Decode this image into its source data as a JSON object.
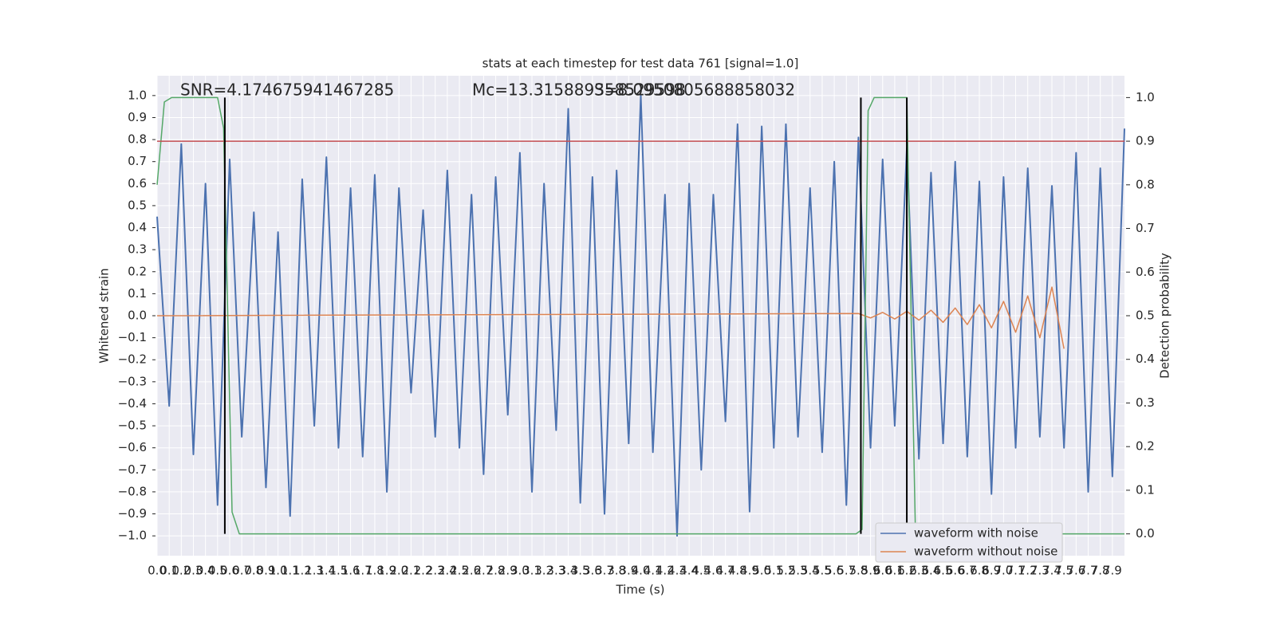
{
  "chart_data": {
    "type": "line",
    "title": "stats at each timestep for test data 761 [signal=1.0]",
    "xlabel": "Time (s)",
    "ylabel": "Whitened strain",
    "y2label": "Detection probability",
    "annotations": [
      "SNR=4.174675941467285",
      "Mc=13.315889358529598",
      "S=8.0950805688858032"
    ],
    "xlim": [
      0,
      8.0
    ],
    "ylim": [
      -1.09,
      1.09
    ],
    "y2lim": [
      -0.05,
      1.05
    ],
    "xticks": [
      {
        "value": 0,
        "label": "0.0"
      },
      0.1,
      0.2,
      0.3,
      0.4,
      0.5,
      0.6,
      0.7,
      0.8,
      0.9,
      {
        "value": 1,
        "label": "1.0"
      },
      1.1,
      1.2,
      1.3,
      1.4,
      1.5,
      1.6,
      1.7,
      1.8,
      1.9,
      {
        "value": 2,
        "label": "2.0"
      },
      2.1,
      2.2,
      2.3,
      2.4,
      2.5,
      2.6,
      2.7,
      2.8,
      2.9,
      {
        "value": 3,
        "label": "3.0"
      },
      3.1,
      3.2,
      3.3,
      3.4,
      3.5,
      3.6,
      3.7,
      3.8,
      3.9,
      {
        "value": 4,
        "label": "4.0"
      },
      4.1,
      4.2,
      4.3,
      4.4,
      4.5,
      4.6,
      4.7,
      4.8,
      4.9,
      {
        "value": 5,
        "label": "5.0"
      },
      5.1,
      5.2,
      5.3,
      5.4,
      5.5,
      5.6,
      5.7,
      5.8,
      5.9,
      {
        "value": 6,
        "label": "6.0"
      },
      6.1,
      6.2,
      6.3,
      6.4,
      6.5,
      6.6,
      6.7,
      6.8,
      6.9,
      {
        "value": 7,
        "label": "7.0"
      },
      7.1,
      7.2,
      7.3,
      7.4,
      7.5,
      7.6,
      7.7,
      7.8,
      7.9
    ],
    "yticks": [
      {
        "value": -1,
        "label": "−1.0"
      },
      {
        "value": -0.9,
        "label": "−0.9"
      },
      {
        "value": -0.8,
        "label": "−0.8"
      },
      {
        "value": -0.7,
        "label": "−0.7"
      },
      {
        "value": -0.6,
        "label": "−0.6"
      },
      {
        "value": -0.5,
        "label": "−0.5"
      },
      {
        "value": -0.4,
        "label": "−0.4"
      },
      {
        "value": -0.3,
        "label": "−0.3"
      },
      {
        "value": -0.2,
        "label": "−0.2"
      },
      {
        "value": -0.1,
        "label": "−0.1"
      },
      {
        "value": 0,
        "label": "0.0"
      },
      0.1,
      0.2,
      0.3,
      0.4,
      0.5,
      0.6,
      0.7,
      0.8,
      0.9,
      {
        "value": 1,
        "label": "1.0"
      }
    ],
    "y2ticks": [
      {
        "value": 0,
        "label": "0.0"
      },
      0.1,
      0.2,
      0.3,
      0.4,
      0.5,
      0.6,
      0.7,
      0.8,
      0.9,
      {
        "value": 1,
        "label": "1.0"
      }
    ],
    "grid": true,
    "legend": "lower right",
    "series": [
      {
        "name": "waveform with noise",
        "color": "#4c72b0",
        "x": [
          0.0,
          0.1,
          0.2,
          0.3,
          0.4,
          0.5,
          0.6,
          0.7,
          0.8,
          0.9,
          1.0,
          1.1,
          1.2,
          1.3,
          1.4,
          1.5,
          1.6,
          1.7,
          1.8,
          1.9,
          2.0,
          2.1,
          2.2,
          2.3,
          2.4,
          2.5,
          2.6,
          2.7,
          2.8,
          2.9,
          3.0,
          3.1,
          3.2,
          3.3,
          3.4,
          3.5,
          3.6,
          3.7,
          3.8,
          3.9,
          4.0,
          4.1,
          4.2,
          4.3,
          4.4,
          4.5,
          4.6,
          4.7,
          4.8,
          4.9,
          5.0,
          5.1,
          5.2,
          5.3,
          5.4,
          5.5,
          5.6,
          5.7,
          5.8,
          5.9,
          6.0,
          6.1,
          6.2,
          6.3,
          6.4,
          6.5,
          6.6,
          6.7,
          6.8,
          6.9,
          7.0,
          7.1,
          7.2,
          7.3,
          7.4,
          7.5,
          7.6,
          7.7,
          7.8,
          7.9,
          8.0
        ],
        "values": [
          0.45,
          -0.41,
          0.78,
          -0.63,
          0.6,
          -0.86,
          0.71,
          -0.55,
          0.47,
          -0.78,
          0.38,
          -0.91,
          0.62,
          -0.5,
          0.72,
          -0.6,
          0.58,
          -0.64,
          0.64,
          -0.8,
          0.58,
          -0.35,
          0.48,
          -0.55,
          0.66,
          -0.6,
          0.55,
          -0.72,
          0.63,
          -0.45,
          0.74,
          -0.8,
          0.6,
          -0.52,
          0.94,
          -0.85,
          0.63,
          -0.9,
          0.66,
          -0.58,
          1.0,
          -0.62,
          0.55,
          -1.0,
          0.6,
          -0.7,
          0.55,
          -0.48,
          0.87,
          -0.89,
          0.86,
          -0.6,
          0.87,
          -0.55,
          0.58,
          -0.62,
          0.7,
          -0.86,
          0.81,
          -0.6,
          0.71,
          -0.5,
          0.76,
          -0.65,
          0.65,
          -0.58,
          0.7,
          -0.64,
          0.61,
          -0.81,
          0.63,
          -0.6,
          0.67,
          -0.55,
          0.59,
          -0.6,
          0.74,
          -0.8,
          0.67,
          -0.73,
          0.85
        ]
      },
      {
        "name": "waveform without noise",
        "color": "#dd8452",
        "x": [
          0.0,
          5.8,
          5.9,
          6.0,
          6.1,
          6.2,
          6.3,
          6.4,
          6.5,
          6.6,
          6.7,
          6.8,
          6.9,
          7.0,
          7.1,
          7.2,
          7.3,
          7.4,
          7.5
        ],
        "values": [
          0,
          0.01,
          -0.01,
          0.015,
          -0.015,
          0.02,
          -0.02,
          0.025,
          -0.03,
          0.035,
          -0.04,
          0.05,
          -0.055,
          0.065,
          -0.075,
          0.09,
          -0.1,
          0.13,
          -0.15
        ]
      },
      {
        "color": "#55a868",
        "axis": "y2",
        "x": [
          0,
          0.06,
          0.12,
          0.5,
          0.55,
          0.62,
          0.68,
          5.78,
          5.83,
          5.88,
          5.93,
          6.2,
          6.27,
          6.33,
          8.0
        ],
        "values": [
          0.8,
          0.99,
          1.0,
          1.0,
          0.93,
          0.05,
          0.0,
          0.0,
          0.01,
          0.97,
          1.0,
          1.0,
          0.02,
          0.0,
          0.0
        ]
      },
      {
        "color": "#c44e52",
        "axis": "y2",
        "x": [
          0,
          8.0
        ],
        "values": [
          0.9,
          0.9
        ]
      }
    ],
    "vlines": [
      0.56,
      5.82,
      6.2
    ],
    "vline_color": "#000000"
  }
}
